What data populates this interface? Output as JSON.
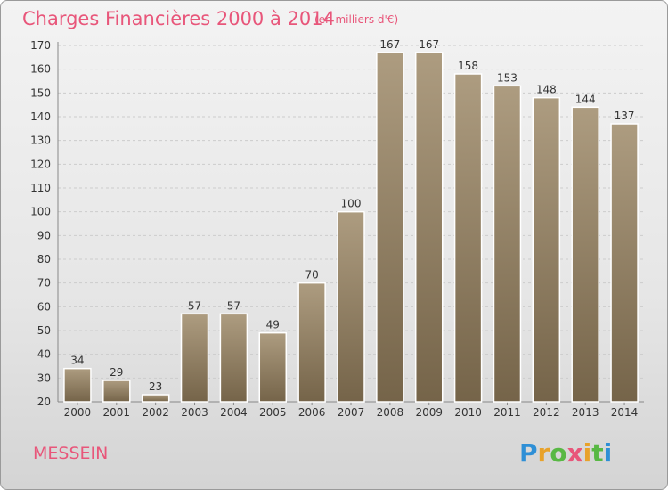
{
  "chart_data": {
    "type": "bar",
    "title": "Charges Financières 2000 à 2014",
    "subtitle": "(en milliers d'€)",
    "categories": [
      "2000",
      "2001",
      "2002",
      "2003",
      "2004",
      "2005",
      "2006",
      "2007",
      "2008",
      "2009",
      "2010",
      "2011",
      "2012",
      "2013",
      "2014"
    ],
    "values": [
      34,
      29,
      23,
      57,
      57,
      49,
      70,
      100,
      167,
      167,
      158,
      153,
      148,
      144,
      137
    ],
    "ylim": [
      20,
      170
    ],
    "yticks": [
      20,
      30,
      40,
      50,
      60,
      70,
      80,
      90,
      100,
      110,
      120,
      130,
      140,
      150,
      160,
      170
    ],
    "grid": true,
    "bar_color": "#8b7a5c"
  },
  "footer": {
    "town": "MESSEIN",
    "logo_letters": [
      "P",
      "r",
      "o",
      "x",
      "i",
      "t",
      "i"
    ],
    "logo_colors": [
      "#2e8fd6",
      "#e8a22a",
      "#58b844",
      "#e8567a",
      "#e8a22a",
      "#58b844",
      "#2e8fd6"
    ]
  }
}
